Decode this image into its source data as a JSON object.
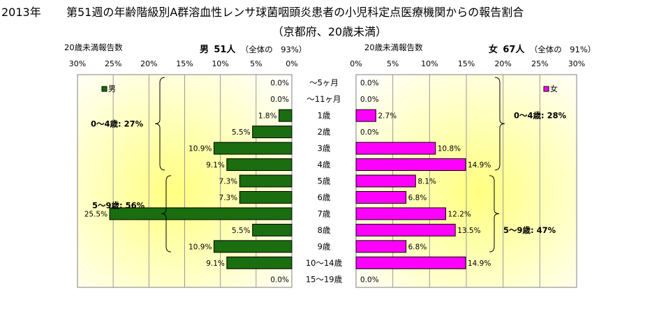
{
  "title": {
    "year": "2013年",
    "main": "第51週の年齢階級別A群溶血性レンサ球菌咽頭炎患者の小児科定点医療機関からの報告割合",
    "sub": "（京都府、20歳未満）"
  },
  "male_header": {
    "axis_label": "20歳未満報告数",
    "label": "男",
    "count": "51人",
    "share": "（全体の　93%）"
  },
  "female_header": {
    "axis_label": "20歳未満報告数",
    "label": "女",
    "count": "67人",
    "share": "（全体の　91%）"
  },
  "chart_data": [
    {
      "type": "bar",
      "orientation": "horizontal",
      "direction": "right-to-left",
      "legend": "男",
      "legend_position": "top-left",
      "color": "#1a6e10",
      "xlim": [
        0,
        30
      ],
      "x_ticks": [
        "30%",
        "25%",
        "20%",
        "15%",
        "10%",
        "5%",
        "0%"
      ],
      "categories": [
        "～5ヶ月",
        "～11ヶ月",
        "1歳",
        "2歳",
        "3歳",
        "4歳",
        "5歳",
        "6歳",
        "7歳",
        "8歳",
        "9歳",
        "10～14歳",
        "15～19歳"
      ],
      "values": [
        0.0,
        0.0,
        1.8,
        5.5,
        10.9,
        9.1,
        7.3,
        7.3,
        25.5,
        5.5,
        10.9,
        9.1,
        0.0
      ],
      "labels": [
        "0.0%",
        "0.0%",
        "1.8%",
        "5.5%",
        "10.9%",
        "9.1%",
        "7.3%",
        "7.3%",
        "25.5%",
        "5.5%",
        "10.9%",
        "9.1%",
        "0.0%"
      ],
      "annotations": [
        "0～4歳:  27%",
        "5～9歳:  56%"
      ]
    },
    {
      "type": "bar",
      "orientation": "horizontal",
      "direction": "left-to-right",
      "legend": "女",
      "legend_position": "top-right",
      "color": "#ff00ff",
      "xlim": [
        0,
        30
      ],
      "x_ticks": [
        "0%",
        "5%",
        "10%",
        "15%",
        "20%",
        "25%",
        "30%"
      ],
      "categories": [
        "～5ヶ月",
        "～11ヶ月",
        "1歳",
        "2歳",
        "3歳",
        "4歳",
        "5歳",
        "6歳",
        "7歳",
        "8歳",
        "9歳",
        "10～14歳",
        "15～19歳"
      ],
      "values": [
        0.0,
        0.0,
        2.7,
        0.0,
        10.8,
        14.9,
        8.1,
        6.8,
        12.2,
        13.5,
        6.8,
        14.9,
        0.0
      ],
      "labels": [
        "0.0%",
        "0.0%",
        "2.7%",
        "0.0%",
        "10.8%",
        "14.9%",
        "8.1%",
        "6.8%",
        "12.2%",
        "13.5%",
        "6.8%",
        "14.9%",
        "0.0%"
      ],
      "annotations": [
        "0～4歳:  28%",
        "5～9歳:  47%"
      ]
    }
  ]
}
